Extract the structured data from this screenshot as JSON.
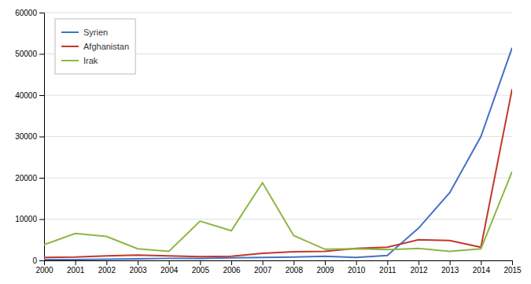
{
  "chart_data": {
    "type": "line",
    "x": [
      2000,
      2001,
      2002,
      2003,
      2004,
      2005,
      2006,
      2007,
      2008,
      2009,
      2010,
      2011,
      2012,
      2013,
      2014,
      2015
    ],
    "series": [
      {
        "name": "Syrien",
        "color": "#4472C4",
        "values": [
          200,
          200,
          300,
          400,
          500,
          500,
          600,
          700,
          800,
          1000,
          700,
          1200,
          7800,
          16400,
          30000,
          51500
        ]
      },
      {
        "name": "Afghanistan",
        "color": "#C0392B",
        "values": [
          700,
          800,
          1100,
          1300,
          1100,
          900,
          1000,
          1700,
          2100,
          2200,
          2900,
          3200,
          5000,
          4800,
          3200,
          41500
        ]
      },
      {
        "name": "Irak",
        "color": "#8DB645",
        "values": [
          3800,
          6500,
          5800,
          2800,
          2200,
          9500,
          7200,
          18800,
          6000,
          2700,
          2800,
          2600,
          2900,
          2200,
          2800,
          21500
        ]
      }
    ],
    "xlim": [
      2000,
      2015
    ],
    "xticks": [
      2000,
      2001,
      2002,
      2003,
      2004,
      2005,
      2006,
      2007,
      2008,
      2009,
      2010,
      2011,
      2012,
      2013,
      2014,
      2015
    ],
    "ylim": [
      0,
      60000
    ],
    "yticks": [
      0,
      10000,
      20000,
      30000,
      40000,
      50000,
      60000
    ],
    "grid": true,
    "legend": "upper left"
  }
}
